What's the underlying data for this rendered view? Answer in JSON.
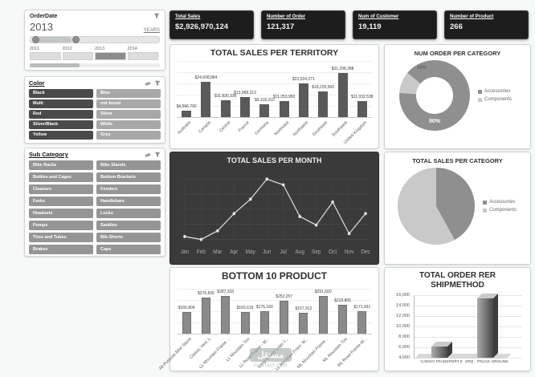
{
  "watermark": {
    "name_ar": "مستقل",
    "domain": "mostaql.com"
  },
  "filters": {
    "order_date": {
      "title": "OrderDate",
      "selected_value": "2013",
      "unit_label": "YEARS",
      "years": [
        "2011",
        "2012",
        "2013",
        "2014"
      ],
      "selected_year_index": 2
    },
    "color": {
      "title": "Color",
      "items": [
        {
          "label": "Black",
          "shade": "dark"
        },
        {
          "label": "Blue",
          "shade": "light"
        },
        {
          "label": "Multi",
          "shade": "dark"
        },
        {
          "label": "not found",
          "shade": "light"
        },
        {
          "label": "Red",
          "shade": "dark"
        },
        {
          "label": "Silver",
          "shade": "light"
        },
        {
          "label": "Silver/Black",
          "shade": "dark"
        },
        {
          "label": "White",
          "shade": "light"
        },
        {
          "label": "Yellow",
          "shade": "dark"
        },
        {
          "label": "Grey",
          "shade": "light"
        }
      ]
    },
    "sub_category": {
      "title": "Sub Category",
      "items": [
        "Bike Racks",
        "Bike Stands",
        "Bottles and Cages",
        "Bottom Brackets",
        "Cleaners",
        "Fenders",
        "Forks",
        "Handlebars",
        "Headsets",
        "Locks",
        "Pumps",
        "Saddles",
        "Tires and Tubes",
        "Bib-Shorts",
        "Brakes",
        "Caps"
      ]
    }
  },
  "kpis": [
    {
      "title": "Total Sales",
      "value": "$2,926,970,124"
    },
    {
      "title": "Number of Order",
      "value": "121,317"
    },
    {
      "title": "Num of Customer",
      "value": "19,119"
    },
    {
      "title": "Number of Product",
      "value": "266"
    }
  ],
  "chart_data": [
    {
      "id": "territory",
      "type": "bar",
      "title": "TOTAL SALES PER TERRITORY",
      "categories": [
        "Australia",
        "Canada",
        "Central",
        "France",
        "Germany",
        "Northeast",
        "Northwest",
        "Southeast",
        "Southwest",
        "United Kingdom"
      ],
      "values": [
        4566792,
        24608884,
        11830336,
        13968313,
        9118310,
        11253950,
        23524271,
        18220500,
        31298288,
        11032538
      ],
      "labels": [
        "$4,566,792",
        "$24,608,884",
        "$11,830,336",
        "$13,968,313",
        "$9,118,310",
        "$11,253,950",
        "$23,524,271",
        "$18,220,500",
        "$31,298,288",
        "$11,032,538"
      ],
      "ylim": [
        0,
        35000000
      ],
      "grid": true,
      "bar_color": "#5a5a5a"
    },
    {
      "id": "order-category",
      "type": "donut",
      "title": "NUM ORDER PER CATEGORY",
      "categories": [
        "Accessories",
        "Components"
      ],
      "values": [
        90,
        10
      ],
      "labels": [
        "90%",
        "10%"
      ],
      "colors": [
        "#8f8f8f",
        "#c9c9c9"
      ],
      "legend_position": "right"
    },
    {
      "id": "sales-month",
      "type": "line",
      "title": "TOTAL SALES PER MONTH",
      "categories": [
        "Jan",
        "Feb",
        "Mar",
        "Apr",
        "May",
        "Jun",
        "Jul",
        "Aug",
        "Sep",
        "Oct",
        "Nov",
        "Dec"
      ],
      "values": [
        14,
        13,
        16,
        22,
        27,
        34,
        32,
        21,
        18,
        26,
        15,
        22
      ],
      "line_color": "#cfcfcf",
      "background": "#3a3a3a",
      "grid": true
    },
    {
      "id": "sales-category",
      "type": "pie",
      "title": "TOTAL SALES PER CATEGORY",
      "categories": [
        "Accessories",
        "Components"
      ],
      "values": [
        42,
        58
      ],
      "colors": [
        "#8f8f8f",
        "#c9c9c9"
      ],
      "legend_position": "right"
    },
    {
      "id": "bottom10",
      "type": "bar",
      "title": "BOTTOM 10 PRODUCT",
      "categories": [
        "All-Purpose Bike Stand",
        "Classic Vest, L",
        "LL Mountain Frame ...",
        "LL Mountain Tire",
        "LL Road Frame - W...",
        "Long Sleeve Logo J...",
        "LL Mountain Fram- W...",
        "ML Mountain Frame...",
        "ML Mountain Tire",
        "ML Road Frame-W..."
      ],
      "values": [
        165804,
        276835,
        287333,
        165619,
        175160,
        252257,
        157912,
        291600,
        218805,
        171931
      ],
      "labels": [
        "$165,804",
        "$276,835",
        "$287,333",
        "$165,619",
        "$175,160",
        "$252,257",
        "$157,912",
        "$291,600",
        "$218,805",
        "$171,931"
      ],
      "ylim": [
        0,
        320000
      ],
      "grid": true,
      "bar_color": "#8a8a8a"
    },
    {
      "id": "shipmethod",
      "type": "bar3d",
      "title": "TOTAL ORDER RER SHIPMETHOD",
      "categories": [
        "CARGO TRANSPORT 5",
        "XRQ - TRUCK GROUND"
      ],
      "values": [
        6200,
        15400
      ],
      "yticks": [
        "4,000",
        "6,000",
        "8,000",
        "10,000",
        "12,000",
        "14,000",
        "16,000"
      ],
      "ylim": [
        4000,
        16000
      ]
    }
  ]
}
